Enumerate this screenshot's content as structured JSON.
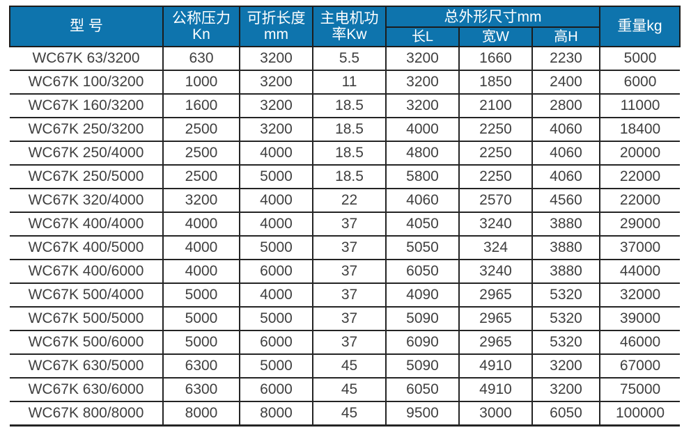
{
  "table": {
    "title_semantic": "WC67K press brake specification table",
    "headers": {
      "model": "型 号",
      "pressure_line1": "公称压力",
      "pressure_line2": "Kn",
      "fold_length_line1": "可折长度",
      "fold_length_line2": "mm",
      "motor_power_line1": "主电机功",
      "motor_power_line2": "率Kw",
      "overall_dimensions": "总外形尺寸mm",
      "dim_length": "长L",
      "dim_width": "宽W",
      "dim_height": "高H",
      "weight": "重量kg"
    },
    "rows": [
      [
        "WC67K 63/3200",
        "630",
        "3200",
        "5.5",
        "3200",
        "1660",
        "2230",
        "5000"
      ],
      [
        "WC67K 100/3200",
        "1000",
        "3200",
        "11",
        "3200",
        "1850",
        "2400",
        "6000"
      ],
      [
        "WC67K 160/3200",
        "1600",
        "3200",
        "18.5",
        "3200",
        "2100",
        "2800",
        "11000"
      ],
      [
        "WC67K 250/3200",
        "2500",
        "3200",
        "18.5",
        "4000",
        "2250",
        "4060",
        "18400"
      ],
      [
        "WC67K 250/4000",
        "2500",
        "4000",
        "18.5",
        "4800",
        "2250",
        "4060",
        "20000"
      ],
      [
        "WC67K 250/5000",
        "2500",
        "5000",
        "18.5",
        "5800",
        "2250",
        "4060",
        "22000"
      ],
      [
        "WC67K 320/4000",
        "3200",
        "4000",
        "22",
        "4060",
        "2570",
        "4560",
        "22000"
      ],
      [
        "WC67K 400/4000",
        "4000",
        "4000",
        "37",
        "4050",
        "3240",
        "3880",
        "29000"
      ],
      [
        "WC67K 400/5000",
        "4000",
        "5000",
        "37",
        "5050",
        "324",
        "3880",
        "37000"
      ],
      [
        "WC67K 400/6000",
        "4000",
        "6000",
        "37",
        "6050",
        "3240",
        "3880",
        "44000"
      ],
      [
        "WC67K 500/4000",
        "5000",
        "4000",
        "37",
        "4090",
        "2965",
        "5320",
        "32000"
      ],
      [
        "WC67K 500/5000",
        "5000",
        "5000",
        "37",
        "5090",
        "2965",
        "5320",
        "39000"
      ],
      [
        "WC67K 500/6000",
        "5000",
        "6000",
        "37",
        "6090",
        "2965",
        "5320",
        "46000"
      ],
      [
        "WC67K 630/5000",
        "6300",
        "5000",
        "45",
        "5090",
        "4910",
        "3200",
        "67000"
      ],
      [
        "WC67K 630/6000",
        "6300",
        "6000",
        "45",
        "6050",
        "4910",
        "3200",
        "75000"
      ],
      [
        "WC67K 800/8000",
        "8000",
        "8000",
        "45",
        "9500",
        "3000",
        "6050",
        "100000"
      ]
    ]
  },
  "colors": {
    "header_bg": "#0e74ad",
    "header_text": "#ffffff",
    "body_text": "#3f3f3f",
    "border": "#242424",
    "subheader_rule": "#ffffff"
  }
}
